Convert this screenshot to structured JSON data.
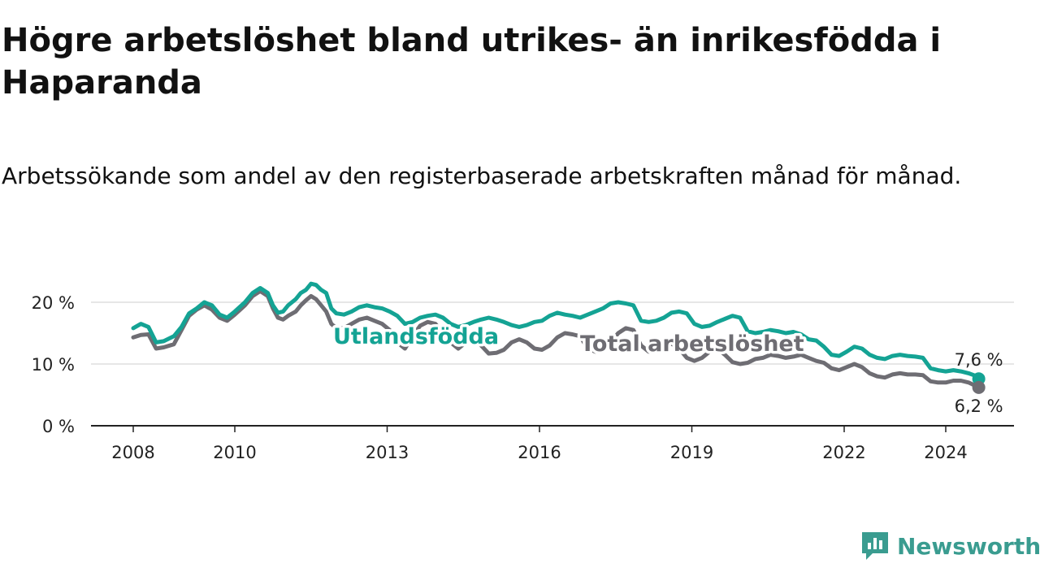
{
  "title": "Högre arbetslöshet bland utrikes- än inrikesfödda i Haparanda",
  "subtitle": "Arbetssökande som andel av den registerbaserade arbetskraften månad för månad.",
  "brand": "Newsworthy",
  "colors": {
    "foreign": "#14a394",
    "total": "#6e6d73",
    "grid": "#dddddd"
  },
  "chart_data": {
    "type": "line",
    "x_unit": "year (decimal, monthly data)",
    "ylim": [
      0,
      23
    ],
    "yticks": [
      0,
      10,
      20
    ],
    "ytick_labels": [
      "0 %",
      "10 %",
      "20 %"
    ],
    "xticks": [
      2008,
      2010,
      2013,
      2016,
      2019,
      2022,
      2024
    ],
    "xtick_labels": [
      "2008",
      "2010",
      "2013",
      "2016",
      "2019",
      "2022",
      "2024"
    ],
    "grid": "horizontal",
    "series": [
      {
        "name": "Utlandsfödda",
        "end_label": "7,6 %",
        "points": [
          [
            2008.0,
            15.8
          ],
          [
            2008.15,
            16.5
          ],
          [
            2008.3,
            16.0
          ],
          [
            2008.45,
            13.5
          ],
          [
            2008.6,
            13.7
          ],
          [
            2008.8,
            14.5
          ],
          [
            2008.95,
            16.0
          ],
          [
            2009.1,
            18.2
          ],
          [
            2009.25,
            19.0
          ],
          [
            2009.4,
            20.0
          ],
          [
            2009.55,
            19.5
          ],
          [
            2009.7,
            18.0
          ],
          [
            2009.85,
            17.5
          ],
          [
            2010.0,
            18.5
          ],
          [
            2010.2,
            20.0
          ],
          [
            2010.35,
            21.5
          ],
          [
            2010.5,
            22.3
          ],
          [
            2010.65,
            21.5
          ],
          [
            2010.75,
            19.5
          ],
          [
            2010.85,
            18.3
          ],
          [
            2010.95,
            18.5
          ],
          [
            2011.05,
            19.5
          ],
          [
            2011.2,
            20.5
          ],
          [
            2011.3,
            21.5
          ],
          [
            2011.4,
            22.0
          ],
          [
            2011.5,
            23.0
          ],
          [
            2011.6,
            22.8
          ],
          [
            2011.7,
            22.0
          ],
          [
            2011.8,
            21.5
          ],
          [
            2011.9,
            19.0
          ],
          [
            2012.0,
            18.2
          ],
          [
            2012.15,
            18.0
          ],
          [
            2012.3,
            18.5
          ],
          [
            2012.45,
            19.2
          ],
          [
            2012.6,
            19.5
          ],
          [
            2012.75,
            19.2
          ],
          [
            2012.9,
            19.0
          ],
          [
            2013.05,
            18.5
          ],
          [
            2013.2,
            17.8
          ],
          [
            2013.35,
            16.5
          ],
          [
            2013.5,
            16.8
          ],
          [
            2013.65,
            17.5
          ],
          [
            2013.8,
            17.8
          ],
          [
            2013.95,
            18.0
          ],
          [
            2014.1,
            17.5
          ],
          [
            2014.25,
            16.5
          ],
          [
            2014.4,
            16.0
          ],
          [
            2014.55,
            16.3
          ],
          [
            2014.7,
            16.8
          ],
          [
            2014.85,
            17.2
          ],
          [
            2015.0,
            17.5
          ],
          [
            2015.15,
            17.2
          ],
          [
            2015.3,
            16.8
          ],
          [
            2015.45,
            16.3
          ],
          [
            2015.6,
            16.0
          ],
          [
            2015.75,
            16.3
          ],
          [
            2015.9,
            16.8
          ],
          [
            2016.05,
            17.0
          ],
          [
            2016.2,
            17.8
          ],
          [
            2016.35,
            18.3
          ],
          [
            2016.5,
            18.0
          ],
          [
            2016.65,
            17.8
          ],
          [
            2016.8,
            17.5
          ],
          [
            2016.95,
            18.0
          ],
          [
            2017.1,
            18.5
          ],
          [
            2017.25,
            19.0
          ],
          [
            2017.4,
            19.8
          ],
          [
            2017.55,
            20.0
          ],
          [
            2017.7,
            19.8
          ],
          [
            2017.85,
            19.5
          ],
          [
            2018.0,
            17.0
          ],
          [
            2018.15,
            16.8
          ],
          [
            2018.3,
            17.0
          ],
          [
            2018.45,
            17.5
          ],
          [
            2018.6,
            18.3
          ],
          [
            2018.75,
            18.5
          ],
          [
            2018.9,
            18.2
          ],
          [
            2019.05,
            16.5
          ],
          [
            2019.2,
            16.0
          ],
          [
            2019.35,
            16.2
          ],
          [
            2019.5,
            16.8
          ],
          [
            2019.65,
            17.3
          ],
          [
            2019.8,
            17.8
          ],
          [
            2019.95,
            17.5
          ],
          [
            2020.1,
            15.3
          ],
          [
            2020.25,
            15.0
          ],
          [
            2020.4,
            15.2
          ],
          [
            2020.55,
            15.5
          ],
          [
            2020.7,
            15.3
          ],
          [
            2020.85,
            15.0
          ],
          [
            2021.0,
            15.2
          ],
          [
            2021.15,
            14.8
          ],
          [
            2021.3,
            14.0
          ],
          [
            2021.45,
            13.8
          ],
          [
            2021.6,
            12.8
          ],
          [
            2021.75,
            11.5
          ],
          [
            2021.9,
            11.3
          ],
          [
            2022.05,
            12.0
          ],
          [
            2022.2,
            12.8
          ],
          [
            2022.35,
            12.5
          ],
          [
            2022.5,
            11.5
          ],
          [
            2022.65,
            11.0
          ],
          [
            2022.8,
            10.8
          ],
          [
            2022.95,
            11.3
          ],
          [
            2023.1,
            11.5
          ],
          [
            2023.25,
            11.3
          ],
          [
            2023.4,
            11.2
          ],
          [
            2023.55,
            11.0
          ],
          [
            2023.7,
            9.3
          ],
          [
            2023.85,
            9.0
          ],
          [
            2024.0,
            8.8
          ],
          [
            2024.15,
            9.0
          ],
          [
            2024.3,
            8.8
          ],
          [
            2024.45,
            8.5
          ],
          [
            2024.55,
            8.2
          ],
          [
            2024.65,
            7.6
          ]
        ]
      },
      {
        "name": "Total arbetslöshet",
        "end_label": "6,2 %",
        "points": [
          [
            2008.0,
            14.3
          ],
          [
            2008.15,
            14.7
          ],
          [
            2008.3,
            14.8
          ],
          [
            2008.45,
            12.5
          ],
          [
            2008.6,
            12.7
          ],
          [
            2008.8,
            13.2
          ],
          [
            2008.95,
            15.5
          ],
          [
            2009.1,
            17.8
          ],
          [
            2009.25,
            18.8
          ],
          [
            2009.4,
            19.5
          ],
          [
            2009.55,
            18.8
          ],
          [
            2009.7,
            17.5
          ],
          [
            2009.85,
            17.0
          ],
          [
            2010.0,
            18.0
          ],
          [
            2010.2,
            19.5
          ],
          [
            2010.35,
            21.0
          ],
          [
            2010.5,
            21.8
          ],
          [
            2010.65,
            21.0
          ],
          [
            2010.75,
            19.0
          ],
          [
            2010.85,
            17.5
          ],
          [
            2010.95,
            17.2
          ],
          [
            2011.05,
            17.8
          ],
          [
            2011.2,
            18.5
          ],
          [
            2011.3,
            19.5
          ],
          [
            2011.4,
            20.3
          ],
          [
            2011.5,
            21.0
          ],
          [
            2011.6,
            20.5
          ],
          [
            2011.7,
            19.5
          ],
          [
            2011.8,
            18.5
          ],
          [
            2011.9,
            16.5
          ],
          [
            2012.0,
            15.8
          ],
          [
            2012.15,
            15.8
          ],
          [
            2012.3,
            16.5
          ],
          [
            2012.45,
            17.2
          ],
          [
            2012.6,
            17.5
          ],
          [
            2012.75,
            17.0
          ],
          [
            2012.9,
            16.5
          ],
          [
            2013.05,
            15.5
          ],
          [
            2013.2,
            13.5
          ],
          [
            2013.35,
            12.5
          ],
          [
            2013.5,
            14.5
          ],
          [
            2013.65,
            16.2
          ],
          [
            2013.8,
            16.8
          ],
          [
            2013.95,
            16.5
          ],
          [
            2014.1,
            15.0
          ],
          [
            2014.25,
            13.5
          ],
          [
            2014.4,
            12.5
          ],
          [
            2014.55,
            13.5
          ],
          [
            2014.7,
            14.0
          ],
          [
            2014.85,
            13.0
          ],
          [
            2015.0,
            11.7
          ],
          [
            2015.15,
            11.8
          ],
          [
            2015.3,
            12.3
          ],
          [
            2015.45,
            13.5
          ],
          [
            2015.6,
            14.0
          ],
          [
            2015.75,
            13.5
          ],
          [
            2015.9,
            12.5
          ],
          [
            2016.05,
            12.3
          ],
          [
            2016.2,
            13.0
          ],
          [
            2016.35,
            14.3
          ],
          [
            2016.5,
            15.0
          ],
          [
            2016.65,
            14.8
          ],
          [
            2016.8,
            14.5
          ],
          [
            2016.95,
            12.5
          ],
          [
            2017.1,
            12.0
          ],
          [
            2017.25,
            12.5
          ],
          [
            2017.4,
            13.5
          ],
          [
            2017.55,
            15.0
          ],
          [
            2017.7,
            15.8
          ],
          [
            2017.85,
            15.5
          ],
          [
            2018.0,
            13.0
          ],
          [
            2018.15,
            12.0
          ],
          [
            2018.3,
            12.2
          ],
          [
            2018.45,
            13.0
          ],
          [
            2018.6,
            13.3
          ],
          [
            2018.75,
            12.5
          ],
          [
            2018.9,
            11.0
          ],
          [
            2019.05,
            10.5
          ],
          [
            2019.2,
            11.0
          ],
          [
            2019.35,
            12.0
          ],
          [
            2019.5,
            12.5
          ],
          [
            2019.65,
            11.5
          ],
          [
            2019.8,
            10.3
          ],
          [
            2019.95,
            10.0
          ],
          [
            2020.1,
            10.2
          ],
          [
            2020.25,
            10.8
          ],
          [
            2020.4,
            11.0
          ],
          [
            2020.55,
            11.5
          ],
          [
            2020.7,
            11.3
          ],
          [
            2020.85,
            11.0
          ],
          [
            2021.0,
            11.2
          ],
          [
            2021.15,
            11.5
          ],
          [
            2021.3,
            11.0
          ],
          [
            2021.45,
            10.5
          ],
          [
            2021.6,
            10.2
          ],
          [
            2021.75,
            9.3
          ],
          [
            2021.9,
            9.0
          ],
          [
            2022.05,
            9.5
          ],
          [
            2022.2,
            10.0
          ],
          [
            2022.35,
            9.5
          ],
          [
            2022.5,
            8.5
          ],
          [
            2022.65,
            8.0
          ],
          [
            2022.8,
            7.8
          ],
          [
            2022.95,
            8.3
          ],
          [
            2023.1,
            8.5
          ],
          [
            2023.25,
            8.3
          ],
          [
            2023.4,
            8.3
          ],
          [
            2023.55,
            8.2
          ],
          [
            2023.7,
            7.2
          ],
          [
            2023.85,
            7.0
          ],
          [
            2024.0,
            7.0
          ],
          [
            2024.15,
            7.3
          ],
          [
            2024.3,
            7.3
          ],
          [
            2024.45,
            7.0
          ],
          [
            2024.55,
            6.6
          ],
          [
            2024.65,
            6.2
          ]
        ]
      }
    ]
  }
}
